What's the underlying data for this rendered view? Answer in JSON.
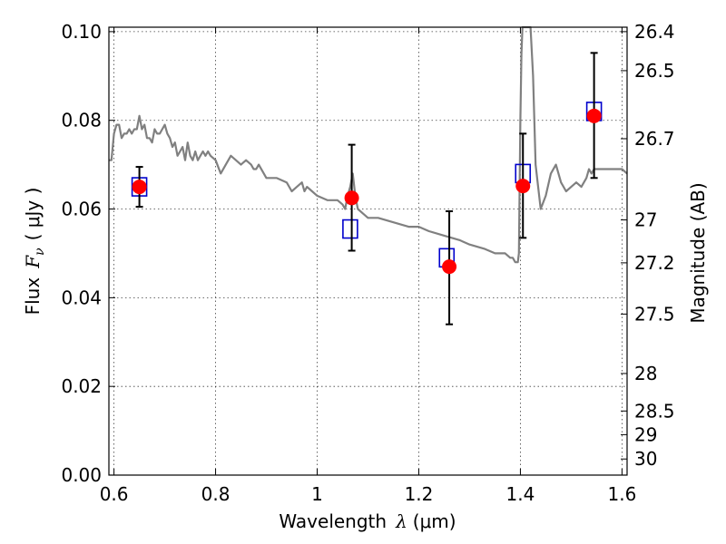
{
  "chart_data": {
    "type": "scatter",
    "xlabel": "Wavelength",
    "xlabel_symbol": "λ",
    "xlabel_unit": "(μm)",
    "ylabel": "Flux",
    "ylabel_symbol": "F",
    "ylabel_subscript": "ν",
    "ylabel_unit": "( μJy )",
    "ylabel_right": "Magnitude (AB)",
    "xlim": [
      0.59,
      1.61
    ],
    "ylim": [
      0.0,
      0.101
    ],
    "x_ticks": [
      0.6,
      0.8,
      1.0,
      1.2,
      1.4,
      1.6
    ],
    "x_tick_labels": [
      "0.6",
      "0.8",
      "1",
      "1.2",
      "1.4",
      "1.6"
    ],
    "y_ticks": [
      0.0,
      0.02,
      0.04,
      0.06,
      0.08,
      0.1
    ],
    "y_tick_labels": [
      "0.00",
      "0.02",
      "0.04",
      "0.06",
      "0.08",
      "0.10"
    ],
    "right_ticks": [
      {
        "mag": 26.4,
        "label": "26.4"
      },
      {
        "mag": 26.5,
        "label": "26.5"
      },
      {
        "mag": 26.7,
        "label": "26.7"
      },
      {
        "mag": 27.0,
        "label": "27"
      },
      {
        "mag": 27.2,
        "label": "27.2"
      },
      {
        "mag": 27.5,
        "label": "27.5"
      },
      {
        "mag": 28.0,
        "label": "28"
      },
      {
        "mag": 28.5,
        "label": "28.5"
      },
      {
        "mag": 29.0,
        "label": "29"
      },
      {
        "mag": 30.0,
        "label": "30"
      }
    ],
    "grid": true,
    "series": [
      {
        "kind": "spectrum-line",
        "color": "#808080",
        "x": [
          0.59,
          0.595,
          0.6,
          0.605,
          0.61,
          0.615,
          0.62,
          0.625,
          0.63,
          0.635,
          0.64,
          0.645,
          0.65,
          0.655,
          0.66,
          0.665,
          0.67,
          0.675,
          0.68,
          0.685,
          0.69,
          0.695,
          0.7,
          0.705,
          0.71,
          0.715,
          0.72,
          0.725,
          0.73,
          0.735,
          0.74,
          0.745,
          0.75,
          0.755,
          0.76,
          0.765,
          0.77,
          0.775,
          0.78,
          0.785,
          0.79,
          0.8,
          0.81,
          0.82,
          0.83,
          0.84,
          0.85,
          0.86,
          0.87,
          0.875,
          0.88,
          0.885,
          0.9,
          0.92,
          0.94,
          0.95,
          0.96,
          0.97,
          0.975,
          0.98,
          0.99,
          1.0,
          1.02,
          1.04,
          1.05,
          1.055,
          1.06,
          1.065,
          1.07,
          1.075,
          1.08,
          1.09,
          1.1,
          1.12,
          1.15,
          1.18,
          1.2,
          1.22,
          1.25,
          1.28,
          1.3,
          1.33,
          1.35,
          1.37,
          1.38,
          1.385,
          1.39,
          1.395,
          1.397,
          1.4,
          1.402,
          1.404,
          1.406,
          1.41,
          1.415,
          1.42,
          1.425,
          1.43,
          1.435,
          1.44,
          1.45,
          1.46,
          1.47,
          1.48,
          1.49,
          1.5,
          1.51,
          1.52,
          1.53,
          1.535,
          1.54,
          1.545,
          1.55,
          1.56,
          1.58,
          1.6,
          1.61
        ],
        "y": [
          0.071,
          0.071,
          0.077,
          0.079,
          0.079,
          0.076,
          0.077,
          0.077,
          0.078,
          0.077,
          0.078,
          0.078,
          0.081,
          0.078,
          0.079,
          0.076,
          0.076,
          0.075,
          0.078,
          0.077,
          0.077,
          0.078,
          0.079,
          0.077,
          0.076,
          0.074,
          0.075,
          0.072,
          0.073,
          0.074,
          0.071,
          0.075,
          0.072,
          0.071,
          0.073,
          0.071,
          0.072,
          0.073,
          0.072,
          0.073,
          0.072,
          0.071,
          0.068,
          0.07,
          0.072,
          0.071,
          0.07,
          0.071,
          0.07,
          0.069,
          0.069,
          0.07,
          0.067,
          0.067,
          0.066,
          0.064,
          0.065,
          0.066,
          0.064,
          0.065,
          0.064,
          0.063,
          0.062,
          0.062,
          0.061,
          0.06,
          0.063,
          0.065,
          0.068,
          0.063,
          0.06,
          0.059,
          0.058,
          0.058,
          0.057,
          0.056,
          0.056,
          0.055,
          0.054,
          0.053,
          0.052,
          0.051,
          0.05,
          0.05,
          0.049,
          0.049,
          0.048,
          0.048,
          0.05,
          0.08,
          0.095,
          0.101,
          0.101,
          0.101,
          0.101,
          0.101,
          0.09,
          0.07,
          0.065,
          0.06,
          0.063,
          0.068,
          0.07,
          0.066,
          0.064,
          0.065,
          0.066,
          0.065,
          0.067,
          0.069,
          0.068,
          0.069,
          0.069,
          0.069,
          0.069,
          0.069,
          0.068
        ]
      },
      {
        "kind": "model-boxes",
        "color": "#0000cc",
        "x": [
          0.65,
          1.065,
          1.255,
          1.405,
          1.545
        ],
        "y": [
          0.065,
          0.0555,
          0.049,
          0.068,
          0.082
        ]
      },
      {
        "kind": "observed-points",
        "color": "#ff0000",
        "x": [
          0.65,
          1.068,
          1.26,
          1.405,
          1.545
        ],
        "y": [
          0.065,
          0.0625,
          0.047,
          0.0652,
          0.081
        ],
        "err_low": [
          0.0605,
          0.0506,
          0.034,
          0.0535,
          0.067
        ],
        "err_high": [
          0.0695,
          0.0745,
          0.0595,
          0.077,
          0.0952
        ]
      }
    ]
  }
}
